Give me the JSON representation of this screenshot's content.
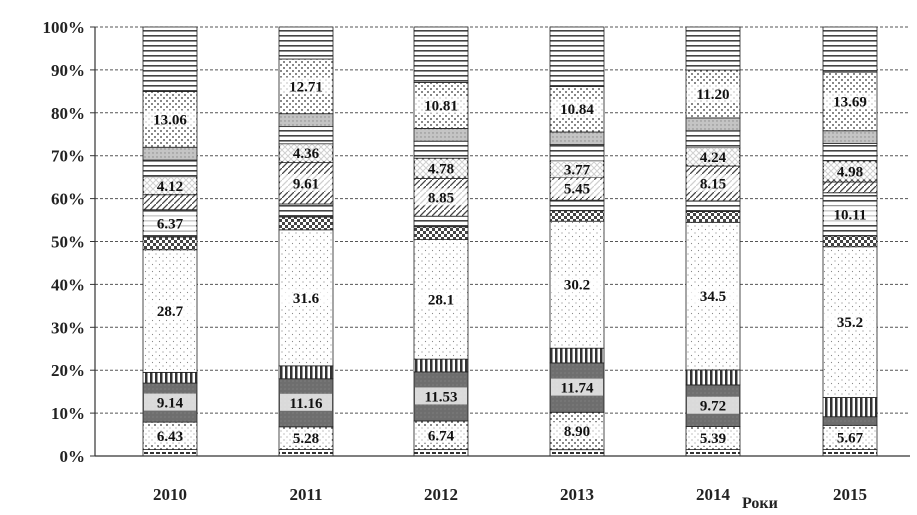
{
  "chart_data": {
    "type": "bar",
    "stacked": true,
    "percent_stacked": true,
    "categories": [
      "2010",
      "2011",
      "2012",
      "2013",
      "2014",
      "2015"
    ],
    "x_tick_labels": [
      "2010",
      "2011",
      "2012",
      "2013",
      "2014",
      "2015"
    ],
    "xlabel": "Роки",
    "ylabel": "",
    "title": "",
    "ylim": [
      0,
      100
    ],
    "y_ticks": [
      "0%",
      "10%",
      "20%",
      "30%",
      "40%",
      "50%",
      "60%",
      "70%",
      "80%",
      "90%",
      "100%"
    ],
    "grid": "horizontal dashed",
    "legend": "none",
    "segments": [
      {
        "pattern": "dense-dash",
        "color": "#555555",
        "values": [
          1.5,
          1.5,
          1.5,
          1.5,
          1.5,
          1.5
        ],
        "labels": [
          "",
          "",
          "",
          "",
          "",
          ""
        ]
      },
      {
        "pattern": "dots",
        "color": "#ffffff",
        "values": [
          6.43,
          5.28,
          6.74,
          8.9,
          5.39,
          5.67
        ],
        "labels": [
          "6.43",
          "5.28",
          "6.74",
          "8.90",
          "5.39",
          "5.67"
        ]
      },
      {
        "pattern": "solid-dark",
        "color": "#777777",
        "values": [
          9.14,
          11.16,
          11.53,
          11.74,
          9.72,
          2.0
        ],
        "labels": [
          "9.14",
          "11.16",
          "11.53",
          "11.74",
          "9.72",
          ""
        ]
      },
      {
        "pattern": "vstripe",
        "color": "#333333",
        "values": [
          2.5,
          3.0,
          3.0,
          3.5,
          3.5,
          4.5
        ],
        "labels": [
          "",
          "",
          "",
          "",
          "",
          ""
        ]
      },
      {
        "pattern": "light-dots",
        "color": "#ffffff",
        "values": [
          28.7,
          31.6,
          28.1,
          30.2,
          34.5,
          35.2
        ],
        "labels": [
          "28.7",
          "31.6",
          "28.1",
          "30.2",
          "34.5",
          "35.2"
        ]
      },
      {
        "pattern": "checker",
        "color": "#444444",
        "values": [
          3.0,
          3.0,
          3.0,
          2.5,
          2.5,
          2.5
        ],
        "labels": [
          "",
          "",
          "",
          "",
          "",
          ""
        ]
      },
      {
        "pattern": "hstripe",
        "color": "#555555",
        "values": [
          6.37,
          3.0,
          2.5,
          2.5,
          2.5,
          10.11
        ],
        "labels": [
          "6.37",
          "",
          "",
          "",
          "",
          "10.11"
        ]
      },
      {
        "pattern": "diag",
        "color": "#555555",
        "values": [
          3.5,
          9.61,
          8.85,
          5.45,
          8.15,
          2.5
        ],
        "labels": [
          "",
          "9.61",
          "8.85",
          "5.45",
          "8.15",
          ""
        ]
      },
      {
        "pattern": "mesh",
        "color": "#444444",
        "values": [
          4.12,
          4.36,
          4.78,
          3.77,
          4.24,
          4.98
        ],
        "labels": [
          "4.12",
          "4.36",
          "4.78",
          "3.77",
          "4.24",
          "4.98"
        ]
      },
      {
        "pattern": "hstripe",
        "color": "#555555",
        "values": [
          4.0,
          4.0,
          4.0,
          4.0,
          4.0,
          4.0
        ],
        "labels": [
          "",
          "",
          "",
          "",
          "",
          ""
        ]
      },
      {
        "pattern": "light-gray",
        "color": "#bbbbbb",
        "values": [
          3.0,
          3.0,
          3.0,
          3.0,
          3.0,
          3.0
        ],
        "labels": [
          "",
          "",
          "",
          "",
          "",
          ""
        ]
      },
      {
        "pattern": "dots",
        "color": "#ffffff",
        "values": [
          13.06,
          12.71,
          10.81,
          10.84,
          11.2,
          13.69
        ],
        "labels": [
          "13.06",
          "12.71",
          "10.81",
          "10.84",
          "11.20",
          "13.69"
        ]
      },
      {
        "pattern": "hstripe",
        "color": "#555555",
        "values": [
          15.08,
          7.43,
          13.03,
          14.13,
          10.05,
          10.54
        ],
        "labels": [
          "",
          "",
          "",
          "",
          "",
          ""
        ]
      }
    ]
  }
}
